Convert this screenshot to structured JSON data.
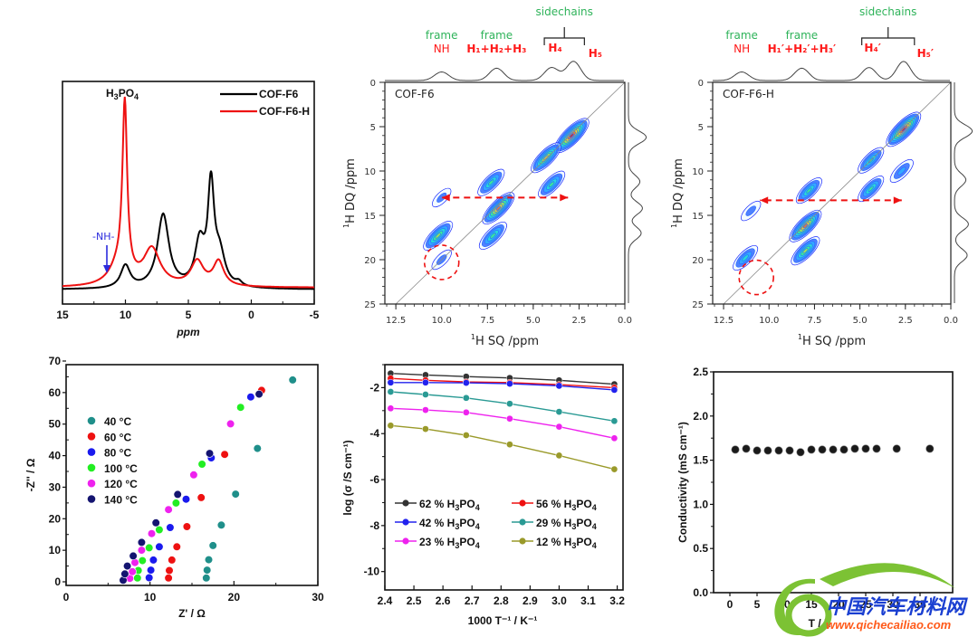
{
  "chart_data": [
    {
      "id": "nmr1d",
      "type": "line",
      "title": "",
      "xlabel": "ppm",
      "ylabel": "",
      "xlim": [
        15,
        -5
      ],
      "xticks": [
        "15",
        "10",
        "5",
        "0",
        "-5"
      ],
      "annotation_top": "H3PO4",
      "annotation_nh": "-NH-",
      "legend": [
        {
          "name": "COF-F6",
          "color": "#000000"
        },
        {
          "name": "COF-F6-H",
          "color": "#ee1111"
        }
      ],
      "series": [
        {
          "name": "COF-F6",
          "color": "#000000",
          "peaks": [
            {
              "ppm": 10.0,
              "height": 0.11,
              "width": 0.45
            },
            {
              "ppm": 7.0,
              "height": 0.36,
              "width": 0.55
            },
            {
              "ppm": 4.1,
              "height": 0.21,
              "width": 0.45
            },
            {
              "ppm": 3.2,
              "height": 0.48,
              "width": 0.3
            },
            {
              "ppm": 2.5,
              "height": 0.15,
              "width": 0.5
            },
            {
              "ppm": 1.0,
              "height": 0.02,
              "width": 0.3
            }
          ]
        },
        {
          "name": "COF-F6-H",
          "color": "#ee1111",
          "peaks": [
            {
              "ppm": 10.05,
              "height": 0.83,
              "width": 0.22
            },
            {
              "ppm": 10.5,
              "height": 0.1,
              "width": 0.9
            },
            {
              "ppm": 7.9,
              "height": 0.18,
              "width": 0.8
            },
            {
              "ppm": 4.3,
              "height": 0.12,
              "width": 0.6
            },
            {
              "ppm": 2.6,
              "height": 0.12,
              "width": 0.5
            }
          ]
        }
      ]
    },
    {
      "id": "nmr2d-a",
      "type": "heatmap",
      "panel_label": "COF-F6",
      "xlabel_sup": "1",
      "xlabel": "H SQ /ppm",
      "ylabel_sup": "1",
      "ylabel": "H DQ /ppm",
      "xlim": [
        13.1,
        0
      ],
      "ylim": [
        0,
        25
      ],
      "xticks": [
        "12.5",
        "10.0",
        "7.5",
        "5.0",
        "2.5",
        "0.0"
      ],
      "yticks": [
        "0",
        "5",
        "10",
        "15",
        "20",
        "25"
      ],
      "top_annotations": [
        {
          "top": "frame",
          "bottom": "NH"
        },
        {
          "top": "frame",
          "bottom": "H₁+H₂+H₃"
        },
        {
          "top": "sidechains",
          "bottom": ""
        },
        {
          "top": "",
          "bottom": "H₄"
        },
        {
          "top": "",
          "bottom": "H₅"
        }
      ],
      "projection_peaks_sq": [
        10.0,
        7.0,
        4.0,
        2.8
      ],
      "projection_peaks_dq": [
        6.2,
        11.2,
        14.2,
        17.0
      ],
      "cross_peaks": [
        {
          "sq": 2.9,
          "dq": 6.0,
          "intensity": 1.0
        },
        {
          "sq": 4.3,
          "dq": 8.5,
          "intensity": 0.75
        },
        {
          "sq": 4.0,
          "dq": 11.5,
          "intensity": 0.55
        },
        {
          "sq": 7.3,
          "dq": 11.3,
          "intensity": 0.55
        },
        {
          "sq": 6.9,
          "dq": 14.2,
          "intensity": 0.85
        },
        {
          "sq": 7.2,
          "dq": 17.3,
          "intensity": 0.6
        },
        {
          "sq": 10.2,
          "dq": 17.3,
          "intensity": 0.7
        },
        {
          "sq": 10.0,
          "dq": 20.0,
          "intensity": 0.15
        },
        {
          "sq": 10.0,
          "dq": 13.0,
          "intensity": 0.1
        }
      ],
      "arrow": {
        "from_sq": 3.1,
        "to_sq": 10.0,
        "dq": 13.0
      },
      "circle": {
        "sq": 10.0,
        "dq": 20.3
      }
    },
    {
      "id": "nmr2d-b",
      "type": "heatmap",
      "panel_label": "COF-F6-H",
      "xlabel_sup": "1",
      "xlabel": "H SQ /ppm",
      "ylabel_sup": "1",
      "ylabel": "H DQ /ppm",
      "xlim": [
        13.1,
        0
      ],
      "ylim": [
        0,
        25
      ],
      "xticks": [
        "12.5",
        "10.0",
        "7.5",
        "5.0",
        "2.5",
        "0.0"
      ],
      "yticks": [
        "0",
        "5",
        "10",
        "15",
        "20",
        "25"
      ],
      "top_annotations": [
        {
          "top": "frame",
          "bottom": "NH"
        },
        {
          "top": "frame",
          "bottom": "H₁′+H₂′+H₃′"
        },
        {
          "top": "sidechains",
          "bottom": ""
        },
        {
          "top": "",
          "bottom": "H₄′"
        },
        {
          "top": "",
          "bottom": "H₅′"
        }
      ],
      "projection_peaks_sq": [
        11.5,
        8.2,
        4.5,
        2.6
      ],
      "projection_peaks_dq": [
        5.5,
        11.0,
        16.0,
        19.5
      ],
      "cross_peaks": [
        {
          "sq": 2.6,
          "dq": 5.3,
          "intensity": 1.0
        },
        {
          "sq": 4.4,
          "dq": 8.8,
          "intensity": 0.5
        },
        {
          "sq": 4.4,
          "dq": 12.0,
          "intensity": 0.5
        },
        {
          "sq": 2.7,
          "dq": 10.0,
          "intensity": 0.35
        },
        {
          "sq": 7.8,
          "dq": 12.2,
          "intensity": 0.5
        },
        {
          "sq": 8.0,
          "dq": 16.2,
          "intensity": 0.85
        },
        {
          "sq": 8.0,
          "dq": 19.0,
          "intensity": 0.65
        },
        {
          "sq": 11.3,
          "dq": 19.8,
          "intensity": 0.45
        },
        {
          "sq": 11.0,
          "dq": 14.5,
          "intensity": 0.15
        }
      ],
      "arrow": {
        "from_sq": 2.7,
        "to_sq": 10.5,
        "dq": 13.3
      },
      "circle": {
        "sq": 10.7,
        "dq": 22.0
      }
    },
    {
      "id": "nyquist",
      "type": "scatter",
      "xlabel": "Z' / Ω",
      "ylabel": "-Z'' / Ω",
      "xlim": [
        0,
        30
      ],
      "ylim": [
        0,
        70
      ],
      "xticks": [
        "0",
        "10",
        "20",
        "30"
      ],
      "yticks": [
        "0",
        "10",
        "20",
        "30",
        "40",
        "50",
        "60",
        "70"
      ],
      "legend_position": "upper-left",
      "series": [
        {
          "name": "40 °C",
          "color": "#1f8f8a",
          "points": [
            [
              16.7,
              1.2
            ],
            [
              16.8,
              3.7
            ],
            [
              17.0,
              7.0
            ],
            [
              17.5,
              11.5
            ],
            [
              18.5,
              18.0
            ],
            [
              20.2,
              27.8
            ],
            [
              22.8,
              42.3
            ],
            [
              27.0,
              64.0
            ]
          ]
        },
        {
          "name": "60 °C",
          "color": "#ee1111",
          "points": [
            [
              12.2,
              1.2
            ],
            [
              12.3,
              3.6
            ],
            [
              12.6,
              6.9
            ],
            [
              13.2,
              11.1
            ],
            [
              14.4,
              17.5
            ],
            [
              16.1,
              26.7
            ],
            [
              18.9,
              40.4
            ],
            [
              23.3,
              60.7
            ]
          ]
        },
        {
          "name": "80 °C",
          "color": "#1a1aee",
          "points": [
            [
              9.9,
              1.3
            ],
            [
              10.1,
              3.7
            ],
            [
              10.4,
              6.9
            ],
            [
              11.1,
              11.1
            ],
            [
              12.4,
              17.2
            ],
            [
              14.3,
              26.2
            ],
            [
              17.3,
              39.3
            ],
            [
              22.0,
              58.6
            ]
          ]
        },
        {
          "name": "100 °C",
          "color": "#22ee22",
          "points": [
            [
              8.5,
              1.2
            ],
            [
              8.6,
              3.6
            ],
            [
              9.1,
              6.7
            ],
            [
              9.9,
              10.8
            ],
            [
              11.1,
              16.5
            ],
            [
              13.1,
              25.0
            ],
            [
              16.2,
              37.3
            ],
            [
              20.8,
              55.3
            ]
          ]
        },
        {
          "name": "120 °C",
          "color": "#ee22ee",
          "points": [
            [
              7.6,
              1.1
            ],
            [
              7.9,
              3.2
            ],
            [
              8.2,
              6.1
            ],
            [
              9.0,
              10.0
            ],
            [
              10.2,
              15.3
            ],
            [
              12.2,
              22.9
            ],
            [
              15.2,
              33.9
            ],
            [
              19.6,
              50.1
            ]
          ]
        },
        {
          "name": "140 °C",
          "color": "#141470",
          "points": [
            [
              6.8,
              0.5
            ],
            [
              7.0,
              2.5
            ],
            [
              7.3,
              5.0
            ],
            [
              8.0,
              8.2
            ],
            [
              9.0,
              12.5
            ],
            [
              10.7,
              18.7
            ],
            [
              13.3,
              27.7
            ],
            [
              17.1,
              40.7
            ],
            [
              23.0,
              59.5
            ]
          ]
        }
      ]
    },
    {
      "id": "arrhenius",
      "type": "line",
      "xlabel": "1000 T⁻¹ / K⁻¹",
      "ylabel": "log (σ /S cm⁻¹)",
      "xlim": [
        2.4,
        3.22
      ],
      "ylim": [
        -10.8,
        -1.0
      ],
      "xticks": [
        "2.4",
        "2.5",
        "2.6",
        "2.7",
        "2.8",
        "2.9",
        "3.0",
        "3.1",
        "3.2"
      ],
      "yticks": [
        "-2",
        "-4",
        "-6",
        "-8",
        "-10"
      ],
      "legend_position": "lower-center",
      "x": [
        2.42,
        2.54,
        2.68,
        2.83,
        3.0,
        3.19
      ],
      "series": [
        {
          "name": "62 % H3PO4",
          "color": "#333333",
          "values": [
            -1.38,
            -1.45,
            -1.52,
            -1.58,
            -1.68,
            -1.85
          ]
        },
        {
          "name": "56 % H3PO4",
          "color": "#ee1111",
          "values": [
            -1.6,
            -1.68,
            -1.75,
            -1.78,
            -1.87,
            -2.0
          ]
        },
        {
          "name": "42 % H3PO4",
          "color": "#2222ee",
          "values": [
            -1.78,
            -1.78,
            -1.79,
            -1.83,
            -1.92,
            -2.1
          ]
        },
        {
          "name": "29 % H3PO4",
          "color": "#2a9a94",
          "values": [
            -2.18,
            -2.3,
            -2.45,
            -2.7,
            -3.05,
            -3.45
          ]
        },
        {
          "name": "23 % H3PO4",
          "color": "#ee22ee",
          "values": [
            -2.9,
            -2.97,
            -3.08,
            -3.35,
            -3.7,
            -4.2
          ]
        },
        {
          "name": "12 % H3PO4",
          "color": "#9a9a2a",
          "values": [
            -3.65,
            -3.8,
            -4.07,
            -4.47,
            -4.95,
            -5.55
          ]
        }
      ]
    },
    {
      "id": "stability",
      "type": "scatter",
      "xlabel": "T / h",
      "ylabel": "Conductivity (mS cm⁻¹)",
      "xlim": [
        -4,
        40
      ],
      "ylim": [
        0,
        2.5
      ],
      "xticks": [
        "0",
        "5",
        "10",
        "15",
        "20",
        "25",
        "30",
        "35"
      ],
      "yticks": [
        "0.0",
        "0.5",
        "1.0",
        "1.5",
        "2.0",
        "2.5"
      ],
      "x": [
        1,
        3,
        5,
        7,
        9,
        11,
        13,
        15,
        17,
        19,
        21,
        23,
        25,
        27,
        30.7,
        36.8
      ],
      "values": [
        1.62,
        1.63,
        1.61,
        1.61,
        1.61,
        1.61,
        1.59,
        1.62,
        1.62,
        1.62,
        1.62,
        1.63,
        1.63,
        1.63,
        1.63,
        1.63
      ]
    }
  ],
  "watermark": {
    "chinese": "中国汽车材料网",
    "url": "www.qichecailiao.com"
  }
}
